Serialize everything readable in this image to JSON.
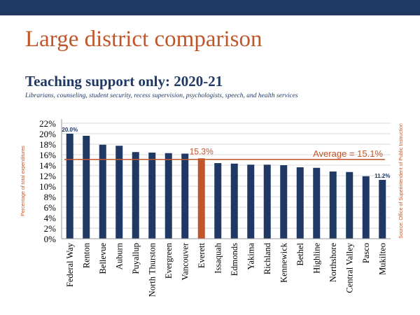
{
  "slide": {
    "title": "Large district comparison",
    "header_color": "#1f3864"
  },
  "chart_data": {
    "type": "bar",
    "title": "Teaching support only:  2020-21",
    "subtitle": "Librarians,  counseling, student security, recess supervision, psychologists, speech, and health services",
    "ylabel": "Percentage of total expenditures",
    "source": "Source: Office of Superintendent of Public Instruction",
    "categories": [
      "Federal Way",
      "Renton",
      "Bellevue",
      "Auburn",
      "Puyallup",
      "North Thurston",
      "Evergreen",
      "Vancouver",
      "Everett",
      "Issaquah",
      "Edmonds",
      "Yakima",
      "Richland",
      "Kennewick",
      "Bethel",
      "Highline",
      "Northshore",
      "Central Valley",
      "Pasco",
      "Mukilteo"
    ],
    "values": [
      20.0,
      19.6,
      17.9,
      17.7,
      16.5,
      16.4,
      16.3,
      16.2,
      15.3,
      14.4,
      14.3,
      14.1,
      14.1,
      14.0,
      13.6,
      13.5,
      12.8,
      12.7,
      11.9,
      11.2
    ],
    "data_labels": {
      "Federal Way": "20.0%",
      "Everett": "15.3%",
      "Mukilteo": "11.2%"
    },
    "highlight": "Everett",
    "average": {
      "value": 15.1,
      "label": "Average = 15.1%"
    },
    "yticks": [
      "0%",
      "2%",
      "4%",
      "6%",
      "8%",
      "10%",
      "12%",
      "14%",
      "16%",
      "18%",
      "20%",
      "22%"
    ],
    "ylim": [
      0,
      22
    ],
    "grid": true,
    "colors": {
      "bar": "#1f3864",
      "highlight": "#c0562a",
      "average": "#c0562a",
      "grid": "#d9d9d9"
    }
  }
}
